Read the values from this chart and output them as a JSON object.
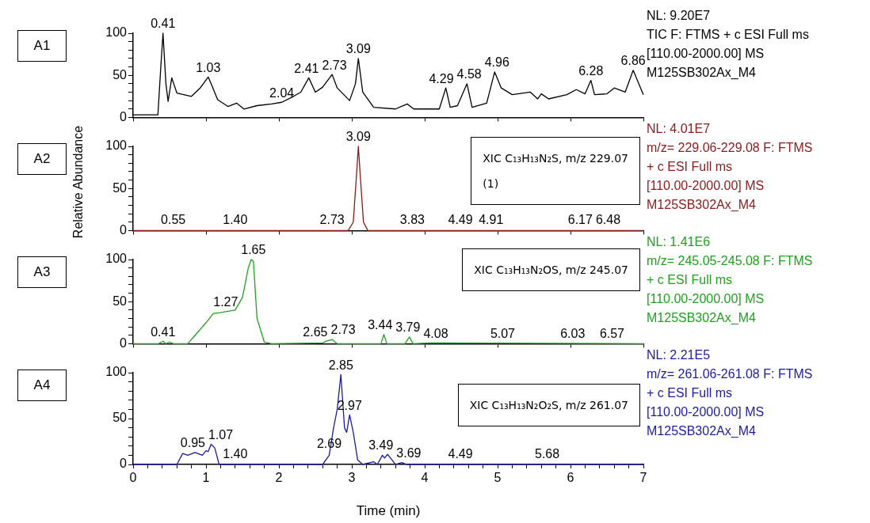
{
  "chart_data": [
    {
      "type": "line",
      "title": "A1",
      "xlim": [
        0,
        7
      ],
      "xticks": [
        0,
        1,
        2,
        3,
        4,
        5,
        6,
        7
      ],
      "ylim": [
        0,
        100
      ],
      "yticks": [
        0,
        {
          "value": 10,
          "label": null
        },
        {
          "value": 20,
          "label": null
        },
        {
          "value": 30,
          "label": null
        },
        {
          "value": 40,
          "label": null
        },
        50,
        {
          "value": 60,
          "label": null
        },
        {
          "value": 70,
          "label": null
        },
        {
          "value": 80,
          "label": null
        },
        {
          "value": 90,
          "label": null
        },
        100
      ],
      "tick_labels": "y",
      "series": [
        {
          "color": "#000000",
          "x": [
            0,
            0.34,
            0.38,
            0.41,
            0.45,
            0.48,
            0.53,
            0.6,
            0.8,
            0.92,
            1.03,
            1.08,
            1.16,
            1.3,
            1.42,
            1.52,
            1.7,
            1.9,
            2.04,
            2.2,
            2.3,
            2.41,
            2.5,
            2.6,
            2.73,
            2.8,
            2.97,
            3.05,
            3.09,
            3.15,
            3.3,
            3.6,
            3.76,
            3.85,
            4.2,
            4.29,
            4.35,
            4.45,
            4.58,
            4.65,
            4.85,
            4.96,
            5.05,
            5.2,
            5.45,
            5.55,
            5.6,
            5.7,
            5.95,
            6.08,
            6.2,
            6.28,
            6.33,
            6.5,
            6.6,
            6.75,
            6.86,
            7
          ],
          "values": [
            3,
            3,
            60,
            100,
            40,
            19,
            47,
            29,
            25,
            35,
            48,
            38,
            21,
            13,
            17,
            10,
            14,
            16,
            18,
            25,
            30,
            47,
            30,
            36,
            51,
            35,
            20,
            40,
            70,
            30,
            12,
            10,
            16,
            10,
            10,
            35,
            12,
            14,
            40,
            12,
            17,
            54,
            35,
            27,
            30,
            22,
            28,
            22,
            27,
            33,
            28,
            44,
            27,
            28,
            35,
            30,
            56,
            27
          ]
        }
      ],
      "annotations": [
        "NL: 9.20E7",
        "TIC F: FTMS + c ESI Full ms",
        "[110.00-2000.00]  MS",
        "M125SB302Ax_M4",
        {
          "text": "0.41",
          "x": 0.41,
          "y": 100
        },
        {
          "text": "1.03",
          "x": 1.03,
          "y": 48
        },
        {
          "text": "2.04",
          "x": 2.04,
          "y": 18
        },
        {
          "text": "2.41",
          "x": 2.41,
          "y": 47
        },
        {
          "text": "2.73",
          "x": 2.73,
          "y": 51
        },
        {
          "text": "3.09",
          "x": 3.09,
          "y": 70
        },
        {
          "text": "4.29",
          "x": 4.29,
          "y": 35
        },
        {
          "text": "4.58",
          "x": 4.58,
          "y": 40
        },
        {
          "text": "4.96",
          "x": 4.96,
          "y": 54
        },
        {
          "text": "6.28",
          "x": 6.28,
          "y": 44
        },
        {
          "text": "6.86",
          "x": 6.86,
          "y": 56
        }
      ]
    },
    {
      "type": "line",
      "title": "A2",
      "subtitle": "XIC C₁₃H₁₃N₂S, m/z 229.07\n(1)",
      "ylabel": "Relative Abundance",
      "xlim": [
        0,
        7
      ],
      "xticks": [
        0,
        1,
        2,
        3,
        4,
        5,
        6,
        7
      ],
      "ylim": [
        0,
        100
      ],
      "yticks": [
        0,
        {
          "value": 10,
          "label": null
        },
        {
          "value": 20,
          "label": null
        },
        {
          "value": 30,
          "label": null
        },
        {
          "value": 40,
          "label": null
        },
        50,
        {
          "value": 60,
          "label": null
        },
        {
          "value": 70,
          "label": null
        },
        {
          "value": 80,
          "label": null
        },
        {
          "value": 90,
          "label": null
        },
        100
      ],
      "tick_labels": "y",
      "series": [
        {
          "color": "#8b1a1a",
          "x": [
            0,
            2.95,
            3.02,
            3.06,
            3.09,
            3.12,
            3.16,
            3.22,
            7
          ],
          "values": [
            0,
            0,
            10,
            60,
            100,
            60,
            10,
            0,
            0
          ]
        }
      ],
      "annotations": [
        "NL: 4.01E7",
        "m/z= 229.06-229.08 F: FTMS",
        "+ c ESI Full ms",
        "[110.00-2000.00]  MS",
        "M125SB302Ax_M4",
        {
          "text": "0.55",
          "x": 0.55,
          "y": 2
        },
        {
          "text": "1.40",
          "x": 1.4,
          "y": 2
        },
        {
          "text": "2.73",
          "x": 2.73,
          "y": 2
        },
        {
          "text": "3.09",
          "x": 3.09,
          "y": 100
        },
        {
          "text": "3.83",
          "x": 3.83,
          "y": 2
        },
        {
          "text": "4.49",
          "x": 4.49,
          "y": 2
        },
        {
          "text": "4.91",
          "x": 4.91,
          "y": 2
        },
        {
          "text": "6.17",
          "x": 6.17,
          "y": 2
        },
        {
          "text": "6.48",
          "x": 6.48,
          "y": 2
        }
      ]
    },
    {
      "type": "line",
      "title": "A3",
      "subtitle": "XIC C₁₃H₁₃N₂OS, m/z 245.07",
      "xlim": [
        0,
        7
      ],
      "xticks": [
        0,
        1,
        2,
        3,
        4,
        5,
        6,
        7
      ],
      "ylim": [
        0,
        100
      ],
      "yticks": [
        0,
        {
          "value": 10,
          "label": null
        },
        {
          "value": 20,
          "label": null
        },
        {
          "value": 30,
          "label": null
        },
        {
          "value": 40,
          "label": null
        },
        50,
        {
          "value": 60,
          "label": null
        },
        {
          "value": 70,
          "label": null
        },
        {
          "value": 80,
          "label": null
        },
        {
          "value": 90,
          "label": null
        },
        100
      ],
      "tick_labels": "y",
      "series": [
        {
          "color": "#22a022",
          "x": [
            0,
            0.35,
            0.41,
            0.45,
            0.5,
            0.55,
            0.75,
            0.85,
            1.0,
            1.1,
            1.2,
            1.27,
            1.4,
            1.5,
            1.58,
            1.62,
            1.65,
            1.7,
            1.8,
            1.9,
            2.6,
            2.65,
            2.73,
            2.8,
            3.4,
            3.44,
            3.48,
            3.73,
            3.79,
            3.84,
            4.08,
            7
          ],
          "values": [
            0,
            0,
            3,
            0,
            2,
            0,
            0,
            10,
            25,
            36,
            37,
            38,
            40,
            55,
            90,
            100,
            98,
            30,
            2,
            0,
            1,
            3,
            5,
            0,
            0,
            11,
            0,
            0,
            8,
            0,
            1,
            0
          ]
        }
      ],
      "annotations": [
        "NL: 1.41E6",
        "m/z= 245.05-245.08 F: FTMS",
        "+ c ESI Full ms",
        "[110.00-2000.00]  MS",
        "M125SB302Ax_M4",
        {
          "text": "0.41",
          "x": 0.41,
          "y": 3
        },
        {
          "text": "1.27",
          "x": 1.27,
          "y": 38
        },
        {
          "text": "1.65",
          "x": 1.65,
          "y": 100
        },
        {
          "text": "2.65",
          "x": 2.65,
          "y": 3
        },
        {
          "text": "2.73",
          "x": 2.73,
          "y": 5
        },
        {
          "text": "3.44",
          "x": 3.44,
          "y": 11
        },
        {
          "text": "3.79",
          "x": 3.79,
          "y": 8
        },
        {
          "text": "4.08",
          "x": 4.08,
          "y": 1
        },
        {
          "text": "5.07",
          "x": 5.07,
          "y": 1
        },
        {
          "text": "6.03",
          "x": 6.03,
          "y": 1
        },
        {
          "text": "6.57",
          "x": 6.57,
          "y": 1
        }
      ]
    },
    {
      "type": "line",
      "title": "A4",
      "subtitle": "XIC C₁₃H₁₃N₂O₂S, m/z 261.07",
      "xlabel": "Time (min)",
      "xlim": [
        0,
        7
      ],
      "xticks": [
        0,
        {
          "value": 0.2,
          "label": null
        },
        {
          "value": 0.4,
          "label": null
        },
        {
          "value": 0.6,
          "label": null
        },
        {
          "value": 0.8,
          "label": null
        },
        1,
        {
          "value": 1.2,
          "label": null
        },
        {
          "value": 1.4,
          "label": null
        },
        {
          "value": 1.6,
          "label": null
        },
        {
          "value": 1.8,
          "label": null
        },
        2,
        {
          "value": 2.2,
          "label": null
        },
        {
          "value": 2.4,
          "label": null
        },
        {
          "value": 2.6,
          "label": null
        },
        {
          "value": 2.8,
          "label": null
        },
        3,
        {
          "value": 3.2,
          "label": null
        },
        {
          "value": 3.4,
          "label": null
        },
        {
          "value": 3.6,
          "label": null
        },
        {
          "value": 3.8,
          "label": null
        },
        4,
        {
          "value": 4.2,
          "label": null
        },
        {
          "value": 4.4,
          "label": null
        },
        {
          "value": 4.6,
          "label": null
        },
        {
          "value": 4.8,
          "label": null
        },
        5,
        {
          "value": 5.2,
          "label": null
        },
        {
          "value": 5.4,
          "label": null
        },
        {
          "value": 5.6,
          "label": null
        },
        {
          "value": 5.8,
          "label": null
        },
        6,
        {
          "value": 6.2,
          "label": null
        },
        {
          "value": 6.4,
          "label": null
        },
        {
          "value": 6.6,
          "label": null
        },
        {
          "value": 6.8,
          "label": null
        },
        7
      ],
      "ylim": [
        0,
        100
      ],
      "yticks": [
        0,
        {
          "value": 10,
          "label": null
        },
        {
          "value": 20,
          "label": null
        },
        {
          "value": 30,
          "label": null
        },
        {
          "value": 40,
          "label": null
        },
        50,
        {
          "value": 60,
          "label": null
        },
        {
          "value": 70,
          "label": null
        },
        {
          "value": 80,
          "label": null
        },
        {
          "value": 90,
          "label": null
        },
        100
      ],
      "series": [
        {
          "color": "#1c1ca0",
          "x": [
            0,
            0.6,
            0.68,
            0.75,
            0.85,
            0.95,
            1.0,
            1.03,
            1.07,
            1.12,
            1.18,
            2.6,
            2.69,
            2.75,
            2.8,
            2.85,
            2.9,
            2.93,
            2.97,
            3.02,
            3.08,
            3.15,
            3.3,
            3.35,
            3.42,
            3.45,
            3.49,
            3.55,
            3.6,
            3.69,
            3.75,
            7
          ],
          "values": [
            0,
            0,
            12,
            10,
            13,
            10,
            15,
            14,
            22,
            18,
            0,
            0,
            10,
            40,
            60,
            98,
            40,
            35,
            54,
            35,
            5,
            0,
            3,
            0,
            10,
            7,
            11,
            5,
            0,
            2,
            0,
            0
          ]
        }
      ],
      "annotations": [
        "NL: 2.21E5",
        "m/z= 261.06-261.08 F: FTMS",
        "+ c ESI Full ms",
        "[110.00-2000.00]  MS",
        "M125SB302Ax_M4",
        {
          "text": "0.95",
          "x": 0.95,
          "y": 13
        },
        {
          "text": "1.07",
          "x": 1.07,
          "y": 22
        },
        {
          "text": "1.40",
          "x": 1.4,
          "y": 1
        },
        {
          "text": "2.69",
          "x": 2.69,
          "y": 12
        },
        {
          "text": "2.85",
          "x": 2.85,
          "y": 98
        },
        {
          "text": "2.97",
          "x": 2.97,
          "y": 54
        },
        {
          "text": "3.49",
          "x": 3.49,
          "y": 11
        },
        {
          "text": "3.69",
          "x": 3.69,
          "y": 2
        },
        {
          "text": "4.49",
          "x": 4.49,
          "y": 1
        },
        {
          "text": "5.68",
          "x": 5.68,
          "y": 1
        }
      ]
    }
  ]
}
